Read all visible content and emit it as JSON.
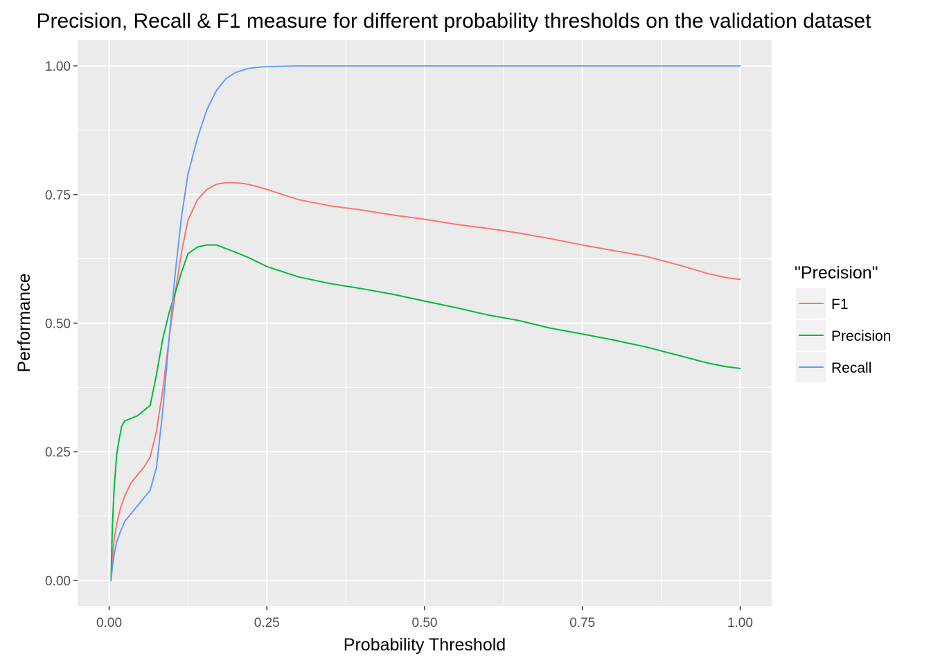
{
  "chart_data": {
    "type": "line",
    "title": "Precision, Recall & F1 measure for different probability thresholds on the validation dataset",
    "xlabel": "Probability Threshold",
    "ylabel": "Performance",
    "xlim": [
      -0.05,
      1.05
    ],
    "ylim": [
      -0.05,
      1.05
    ],
    "xticks": [
      0.0,
      0.25,
      0.5,
      0.75,
      1.0
    ],
    "xtick_labels": [
      "0.00",
      "0.25",
      "0.50",
      "0.75",
      "1.00"
    ],
    "yticks": [
      0.0,
      0.25,
      0.5,
      0.75,
      1.0
    ],
    "ytick_labels": [
      "0.00",
      "0.25",
      "0.50",
      "0.75",
      "1.00"
    ],
    "grid": true,
    "legend": {
      "title": "\"Precision\"",
      "position": "right"
    },
    "series": [
      {
        "name": "F1",
        "color": "#F8766D",
        "x": [
          0.003,
          0.005,
          0.008,
          0.012,
          0.018,
          0.025,
          0.035,
          0.045,
          0.055,
          0.065,
          0.075,
          0.085,
          0.095,
          0.105,
          0.115,
          0.125,
          0.14,
          0.155,
          0.17,
          0.185,
          0.2,
          0.215,
          0.23,
          0.25,
          0.3,
          0.35,
          0.4,
          0.45,
          0.5,
          0.55,
          0.6,
          0.65,
          0.7,
          0.75,
          0.8,
          0.85,
          0.9,
          0.95,
          0.98,
          1.0
        ],
        "y": [
          0.0,
          0.04,
          0.08,
          0.11,
          0.14,
          0.165,
          0.19,
          0.205,
          0.22,
          0.24,
          0.29,
          0.37,
          0.47,
          0.56,
          0.64,
          0.7,
          0.74,
          0.76,
          0.77,
          0.773,
          0.773,
          0.771,
          0.767,
          0.76,
          0.74,
          0.728,
          0.72,
          0.71,
          0.702,
          0.692,
          0.684,
          0.675,
          0.664,
          0.652,
          0.641,
          0.63,
          0.614,
          0.596,
          0.588,
          0.585
        ]
      },
      {
        "name": "Precision",
        "color": "#00BA38",
        "x": [
          0.003,
          0.005,
          0.008,
          0.012,
          0.016,
          0.02,
          0.025,
          0.035,
          0.045,
          0.055,
          0.065,
          0.075,
          0.085,
          0.095,
          0.105,
          0.115,
          0.125,
          0.14,
          0.155,
          0.17,
          0.185,
          0.2,
          0.22,
          0.25,
          0.3,
          0.35,
          0.4,
          0.45,
          0.5,
          0.55,
          0.6,
          0.65,
          0.7,
          0.75,
          0.8,
          0.85,
          0.9,
          0.95,
          0.98,
          1.0
        ],
        "y": [
          0.0,
          0.1,
          0.18,
          0.245,
          0.275,
          0.3,
          0.31,
          0.315,
          0.32,
          0.33,
          0.34,
          0.4,
          0.47,
          0.52,
          0.56,
          0.6,
          0.635,
          0.648,
          0.652,
          0.652,
          0.645,
          0.638,
          0.628,
          0.61,
          0.59,
          0.577,
          0.567,
          0.556,
          0.543,
          0.53,
          0.516,
          0.505,
          0.49,
          0.479,
          0.467,
          0.454,
          0.438,
          0.422,
          0.415,
          0.412
        ]
      },
      {
        "name": "Recall",
        "color": "#619CFF",
        "x": [
          0.003,
          0.005,
          0.008,
          0.012,
          0.018,
          0.025,
          0.035,
          0.045,
          0.055,
          0.065,
          0.075,
          0.085,
          0.095,
          0.105,
          0.115,
          0.125,
          0.14,
          0.155,
          0.17,
          0.185,
          0.2,
          0.22,
          0.24,
          0.26,
          0.3,
          0.35,
          0.5,
          0.75,
          1.0
        ],
        "y": [
          0.0,
          0.025,
          0.05,
          0.075,
          0.095,
          0.115,
          0.13,
          0.145,
          0.16,
          0.175,
          0.22,
          0.33,
          0.47,
          0.6,
          0.71,
          0.79,
          0.86,
          0.915,
          0.952,
          0.975,
          0.987,
          0.995,
          0.998,
          0.999,
          1.0,
          1.0,
          1.0,
          1.0,
          1.0
        ]
      }
    ]
  }
}
